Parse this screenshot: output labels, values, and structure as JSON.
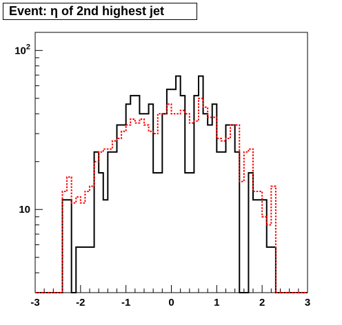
{
  "chart_data": {
    "type": "histogram",
    "title": "Event: η of 2nd highest jet",
    "xlabel": "",
    "ylabel": "",
    "xlim": [
      -3,
      3
    ],
    "ylim": [
      3,
      130
    ],
    "yscale": "log",
    "xticks": [
      "-3",
      "-2",
      "-1",
      "0",
      "1",
      "2",
      "3"
    ],
    "ytick_labels": [
      {
        "value": 10,
        "label": "10"
      },
      {
        "value": 100,
        "label": "10",
        "exponent": "2"
      }
    ],
    "bin_edges": [
      -3.0,
      -2.9,
      -2.8,
      -2.7,
      -2.6,
      -2.5,
      -2.4,
      -2.3,
      -2.2,
      -2.1,
      -2.0,
      -1.9,
      -1.8,
      -1.7,
      -1.6,
      -1.5,
      -1.4,
      -1.3,
      -1.2,
      -1.1,
      -1.0,
      -0.9,
      -0.8,
      -0.7,
      -0.6,
      -0.5,
      -0.4,
      -0.3,
      -0.2,
      -0.1,
      0.0,
      0.1,
      0.2,
      0.3,
      0.4,
      0.5,
      0.6,
      0.7,
      0.8,
      0.9,
      1.0,
      1.1,
      1.2,
      1.3,
      1.4,
      1.5,
      1.6,
      1.7,
      1.8,
      1.9,
      2.0,
      2.1,
      2.2,
      2.3,
      2.4,
      2.5,
      2.6,
      2.7,
      2.8,
      2.9,
      3.0
    ],
    "series": [
      {
        "color": "#000000",
        "style": "solid",
        "values": [
          0,
          0,
          0,
          0,
          0,
          0,
          11.5,
          11.5,
          0,
          5.8,
          5.8,
          5.8,
          5.8,
          23,
          17,
          11.5,
          23,
          23,
          34,
          34,
          46,
          52,
          52,
          40,
          40,
          46,
          17,
          17,
          40,
          57,
          57,
          69,
          52,
          17,
          17,
          52,
          69,
          40,
          34,
          46,
          23,
          23,
          34,
          34,
          23,
          0,
          0,
          17,
          11.5,
          11.5,
          11.5,
          5.8,
          5.8,
          0,
          0,
          0,
          0,
          0,
          0,
          0
        ]
      },
      {
        "color": "#ff0000",
        "style": "dotted",
        "values": [
          0,
          0,
          0,
          0,
          0,
          0,
          13,
          16,
          11,
          12,
          11,
          13,
          14,
          20,
          23,
          24,
          24,
          27,
          28,
          31,
          34,
          37,
          35,
          37,
          34,
          31,
          30,
          40,
          40,
          46,
          40,
          40,
          42,
          40,
          35,
          36,
          50,
          44,
          38,
          38,
          28,
          27,
          28,
          34,
          34,
          15,
          23,
          24,
          13,
          13,
          9,
          8,
          14,
          0,
          0,
          0,
          0,
          0,
          0,
          0
        ]
      }
    ],
    "grid": false,
    "legend": "none"
  }
}
